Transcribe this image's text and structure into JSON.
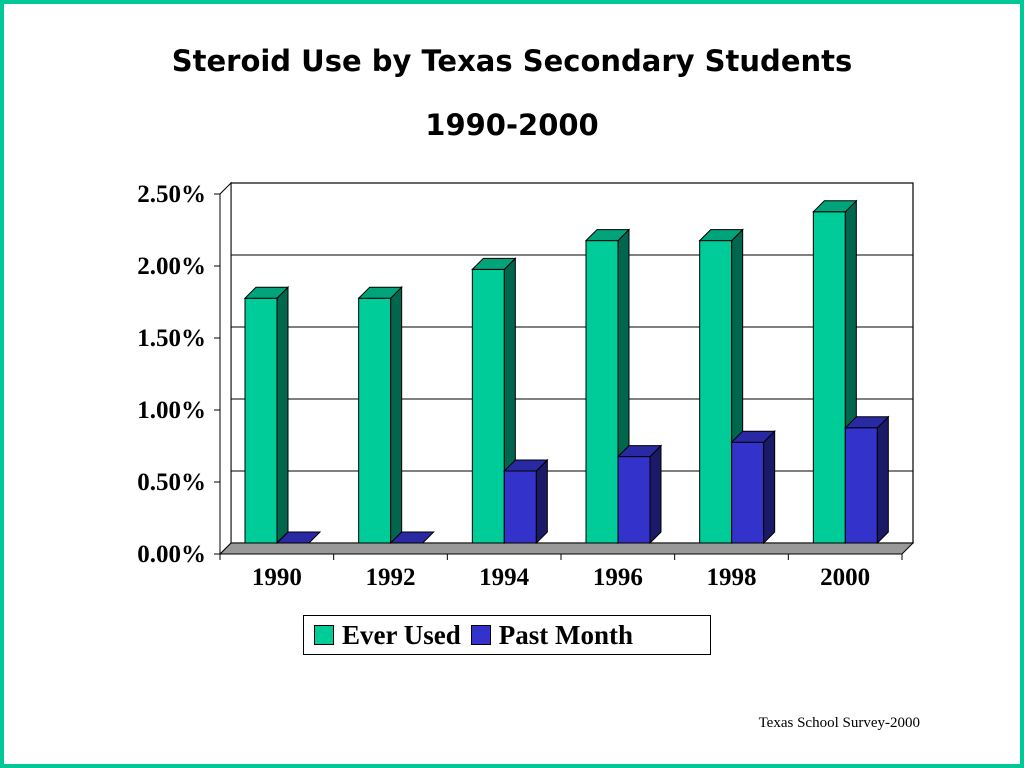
{
  "slide": {
    "title_line1": "Steroid Use by Texas Secondary Students",
    "title_line2": "1990-2000",
    "source": "Texas School Survey-2000",
    "border_color": "#00c896"
  },
  "chart_data": {
    "type": "bar",
    "style": "3d-clustered",
    "categories": [
      "1990",
      "1992",
      "1994",
      "1996",
      "1998",
      "2000"
    ],
    "series": [
      {
        "name": "Ever Used",
        "values": [
          1.7,
          1.7,
          1.9,
          2.1,
          2.1,
          2.3
        ],
        "color": "#00cc99",
        "side_color": "#00664d",
        "top_color": "#00a37a"
      },
      {
        "name": "Past Month",
        "values": [
          0.0,
          0.0,
          0.5,
          0.6,
          0.7,
          0.8
        ],
        "color": "#3333cc",
        "side_color": "#1a1a66",
        "top_color": "#2929a3"
      }
    ],
    "yticks": [
      "0.00%",
      "0.50%",
      "1.00%",
      "1.50%",
      "2.00%",
      "2.50%"
    ],
    "ylim": [
      0,
      2.5
    ],
    "grid": true,
    "legend": "bottom"
  }
}
